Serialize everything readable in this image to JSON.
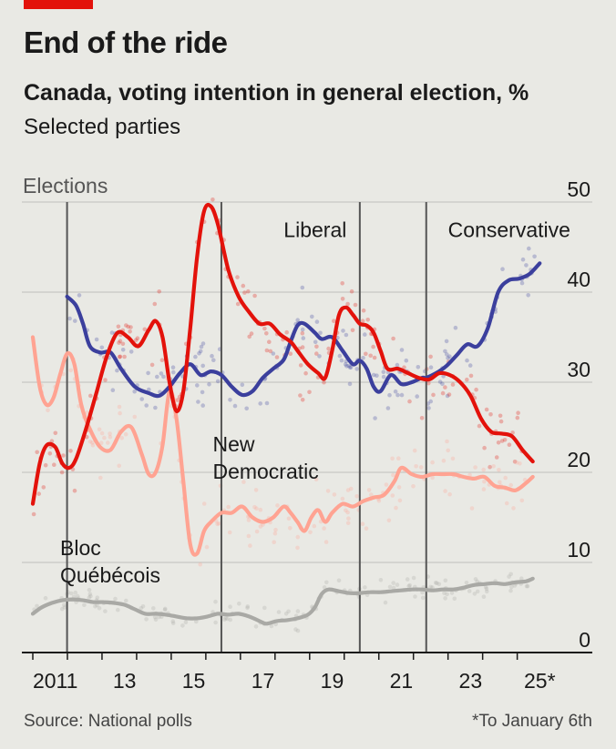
{
  "header": {
    "title": "End of the ride",
    "subtitle": "Canada, voting intention in general election, %",
    "note": "Selected parties"
  },
  "footer": {
    "source": "Source: National polls",
    "footnote": "*To January 6th"
  },
  "chart_data": {
    "type": "line",
    "title": "End of the ride",
    "ylim": [
      0,
      50
    ],
    "y_ticks": [
      "0",
      "10",
      "20",
      "30",
      "40",
      "50"
    ],
    "x_ticks": [
      {
        "x": 2011.0,
        "label": "2011"
      },
      {
        "x": 2013.0,
        "label": "13"
      },
      {
        "x": 2015.0,
        "label": "15"
      },
      {
        "x": 2017.0,
        "label": "17"
      },
      {
        "x": 2019.0,
        "label": "19"
      },
      {
        "x": 2021.0,
        "label": "21"
      },
      {
        "x": 2023.0,
        "label": "23"
      },
      {
        "x": 2025.0,
        "label": "25*"
      }
    ],
    "x_minor_ticks": [
      2010.35,
      2011.35,
      2012.35,
      2013.35,
      2014.35,
      2015.35,
      2016.35,
      2017.35,
      2018.35,
      2019.35,
      2020.35,
      2021.35,
      2022.35,
      2023.35,
      2024.35
    ],
    "xlim": [
      2010.35,
      2025.15
    ],
    "elections_label": "Elections",
    "elections": [
      2011.34,
      2015.8,
      2019.8,
      2021.72
    ],
    "grid": true,
    "series": [
      {
        "name": "Conservative",
        "color": "#3b3f9d",
        "label_at": [
          2022.35,
          46.1
        ],
        "points": [
          [
            2011.34,
            39.5
          ],
          [
            2011.6,
            38.5
          ],
          [
            2011.8,
            36.5
          ],
          [
            2012.0,
            34.0
          ],
          [
            2012.3,
            33.3
          ],
          [
            2012.6,
            33.3
          ],
          [
            2012.9,
            31.5
          ],
          [
            2013.3,
            29.5
          ],
          [
            2013.7,
            28.8
          ],
          [
            2014.0,
            28.5
          ],
          [
            2014.3,
            29.5
          ],
          [
            2014.6,
            31.0
          ],
          [
            2014.9,
            32.0
          ],
          [
            2015.2,
            30.8
          ],
          [
            2015.5,
            31.2
          ],
          [
            2015.8,
            30.8
          ],
          [
            2016.1,
            29.5
          ],
          [
            2016.4,
            28.6
          ],
          [
            2016.7,
            29.0
          ],
          [
            2017.0,
            30.5
          ],
          [
            2017.3,
            31.5
          ],
          [
            2017.6,
            32.5
          ],
          [
            2017.8,
            34.5
          ],
          [
            2018.0,
            36.3
          ],
          [
            2018.2,
            36.5
          ],
          [
            2018.5,
            35.5
          ],
          [
            2018.7,
            34.8
          ],
          [
            2019.0,
            35.0
          ],
          [
            2019.3,
            33.5
          ],
          [
            2019.6,
            32.0
          ],
          [
            2019.8,
            32.4
          ],
          [
            2020.0,
            31.5
          ],
          [
            2020.2,
            29.5
          ],
          [
            2020.4,
            29.0
          ],
          [
            2020.7,
            30.8
          ],
          [
            2021.0,
            29.8
          ],
          [
            2021.3,
            30.0
          ],
          [
            2021.6,
            30.5
          ],
          [
            2021.72,
            30.5
          ],
          [
            2022.0,
            31.0
          ],
          [
            2022.3,
            31.8
          ],
          [
            2022.6,
            33.0
          ],
          [
            2022.9,
            34.2
          ],
          [
            2023.2,
            34.0
          ],
          [
            2023.5,
            36.0
          ],
          [
            2023.8,
            40.0
          ],
          [
            2024.1,
            41.3
          ],
          [
            2024.4,
            41.5
          ],
          [
            2024.7,
            42.0
          ],
          [
            2025.0,
            43.2
          ]
        ]
      },
      {
        "name": "Liberal",
        "color": "#e3120b",
        "label_at": [
          2017.6,
          46.1
        ],
        "points": [
          [
            2010.35,
            16.5
          ],
          [
            2010.55,
            21.0
          ],
          [
            2010.75,
            23.0
          ],
          [
            2011.0,
            22.8
          ],
          [
            2011.2,
            21.0
          ],
          [
            2011.4,
            20.5
          ],
          [
            2011.6,
            21.5
          ],
          [
            2011.9,
            25.0
          ],
          [
            2012.2,
            29.0
          ],
          [
            2012.5,
            33.0
          ],
          [
            2012.8,
            35.5
          ],
          [
            2013.1,
            35.0
          ],
          [
            2013.4,
            34.0
          ],
          [
            2013.7,
            35.8
          ],
          [
            2013.9,
            36.8
          ],
          [
            2014.1,
            35.0
          ],
          [
            2014.3,
            30.0
          ],
          [
            2014.5,
            26.8
          ],
          [
            2014.7,
            29.0
          ],
          [
            2014.9,
            36.0
          ],
          [
            2015.1,
            44.0
          ],
          [
            2015.3,
            49.0
          ],
          [
            2015.5,
            49.5
          ],
          [
            2015.7,
            47.5
          ],
          [
            2016.0,
            42.5
          ],
          [
            2016.3,
            39.5
          ],
          [
            2016.6,
            37.8
          ],
          [
            2016.9,
            36.5
          ],
          [
            2017.2,
            36.5
          ],
          [
            2017.5,
            35.3
          ],
          [
            2017.8,
            34.5
          ],
          [
            2018.0,
            33.5
          ],
          [
            2018.3,
            32.0
          ],
          [
            2018.6,
            31.0
          ],
          [
            2018.8,
            30.5
          ],
          [
            2019.0,
            33.5
          ],
          [
            2019.2,
            37.5
          ],
          [
            2019.4,
            38.3
          ],
          [
            2019.6,
            37.5
          ],
          [
            2019.8,
            36.5
          ],
          [
            2020.0,
            36.3
          ],
          [
            2020.2,
            35.5
          ],
          [
            2020.4,
            33.5
          ],
          [
            2020.6,
            31.5
          ],
          [
            2020.9,
            31.5
          ],
          [
            2021.2,
            31.0
          ],
          [
            2021.5,
            30.5
          ],
          [
            2021.8,
            30.3
          ],
          [
            2022.1,
            31.0
          ],
          [
            2022.4,
            30.8
          ],
          [
            2022.7,
            30.0
          ],
          [
            2023.0,
            28.5
          ],
          [
            2023.3,
            26.0
          ],
          [
            2023.6,
            24.5
          ],
          [
            2023.9,
            24.3
          ],
          [
            2024.2,
            24.0
          ],
          [
            2024.5,
            22.5
          ],
          [
            2024.8,
            21.2
          ]
        ]
      },
      {
        "name": "New Democratic",
        "color": "#ffa392",
        "label_at": [
          2015.55,
          22.3
        ],
        "points": [
          [
            2010.35,
            35.0
          ],
          [
            2010.55,
            29.5
          ],
          [
            2010.75,
            27.5
          ],
          [
            2010.95,
            28.3
          ],
          [
            2011.15,
            31.0
          ],
          [
            2011.35,
            33.2
          ],
          [
            2011.55,
            32.0
          ],
          [
            2011.75,
            27.5
          ],
          [
            2012.0,
            24.8
          ],
          [
            2012.3,
            22.8
          ],
          [
            2012.6,
            22.5
          ],
          [
            2012.9,
            24.5
          ],
          [
            2013.2,
            25.0
          ],
          [
            2013.5,
            22.0
          ],
          [
            2013.7,
            19.8
          ],
          [
            2013.9,
            20.0
          ],
          [
            2014.1,
            23.0
          ],
          [
            2014.3,
            29.0
          ],
          [
            2014.5,
            26.0
          ],
          [
            2014.7,
            19.0
          ],
          [
            2014.9,
            12.0
          ],
          [
            2015.1,
            11.0
          ],
          [
            2015.3,
            13.5
          ],
          [
            2015.5,
            14.5
          ],
          [
            2015.8,
            15.5
          ],
          [
            2016.1,
            15.5
          ],
          [
            2016.4,
            16.2
          ],
          [
            2016.7,
            15.0
          ],
          [
            2017.0,
            14.5
          ],
          [
            2017.3,
            15.0
          ],
          [
            2017.6,
            16.2
          ],
          [
            2017.8,
            15.5
          ],
          [
            2018.0,
            14.5
          ],
          [
            2018.2,
            13.5
          ],
          [
            2018.4,
            15.0
          ],
          [
            2018.6,
            15.8
          ],
          [
            2018.8,
            14.5
          ],
          [
            2019.0,
            15.5
          ],
          [
            2019.3,
            16.5
          ],
          [
            2019.6,
            16.2
          ],
          [
            2019.9,
            16.8
          ],
          [
            2020.2,
            17.2
          ],
          [
            2020.5,
            17.5
          ],
          [
            2020.8,
            19.0
          ],
          [
            2021.0,
            20.5
          ],
          [
            2021.3,
            19.8
          ],
          [
            2021.6,
            19.5
          ],
          [
            2021.9,
            19.8
          ],
          [
            2022.2,
            19.8
          ],
          [
            2022.5,
            19.8
          ],
          [
            2022.8,
            19.5
          ],
          [
            2023.1,
            19.3
          ],
          [
            2023.4,
            19.5
          ],
          [
            2023.7,
            18.5
          ],
          [
            2024.0,
            18.3
          ],
          [
            2024.3,
            18.0
          ],
          [
            2024.6,
            18.8
          ],
          [
            2024.8,
            19.5
          ]
        ]
      },
      {
        "name": "Bloc Québécois",
        "color": "#a9a9a5",
        "label_at": [
          2010.35,
          10.8
        ],
        "label_line2_at": [
          2010.35,
          7.8
        ],
        "points": [
          [
            2010.35,
            4.3
          ],
          [
            2010.6,
            5.0
          ],
          [
            2010.9,
            5.5
          ],
          [
            2011.2,
            5.8
          ],
          [
            2011.5,
            5.9
          ],
          [
            2011.8,
            5.8
          ],
          [
            2012.1,
            5.6
          ],
          [
            2012.4,
            5.6
          ],
          [
            2012.7,
            5.5
          ],
          [
            2013.0,
            5.3
          ],
          [
            2013.3,
            4.8
          ],
          [
            2013.6,
            4.3
          ],
          [
            2013.9,
            4.3
          ],
          [
            2014.2,
            4.2
          ],
          [
            2014.5,
            4.0
          ],
          [
            2014.8,
            3.8
          ],
          [
            2015.1,
            3.8
          ],
          [
            2015.4,
            4.0
          ],
          [
            2015.7,
            4.3
          ],
          [
            2016.0,
            4.2
          ],
          [
            2016.3,
            4.3
          ],
          [
            2016.6,
            4.0
          ],
          [
            2016.9,
            3.5
          ],
          [
            2017.1,
            3.2
          ],
          [
            2017.4,
            3.5
          ],
          [
            2017.7,
            3.6
          ],
          [
            2018.0,
            3.8
          ],
          [
            2018.3,
            4.2
          ],
          [
            2018.5,
            5.0
          ],
          [
            2018.7,
            6.5
          ],
          [
            2018.9,
            7.0
          ],
          [
            2019.2,
            6.8
          ],
          [
            2019.5,
            6.6
          ],
          [
            2019.8,
            6.6
          ],
          [
            2020.1,
            6.7
          ],
          [
            2020.4,
            6.7
          ],
          [
            2020.7,
            6.8
          ],
          [
            2021.0,
            6.9
          ],
          [
            2021.3,
            7.0
          ],
          [
            2021.6,
            7.0
          ],
          [
            2021.9,
            6.9
          ],
          [
            2022.2,
            7.0
          ],
          [
            2022.5,
            7.0
          ],
          [
            2022.8,
            7.2
          ],
          [
            2023.1,
            7.5
          ],
          [
            2023.4,
            7.6
          ],
          [
            2023.7,
            7.7
          ],
          [
            2024.0,
            7.6
          ],
          [
            2024.3,
            7.8
          ],
          [
            2024.6,
            7.9
          ],
          [
            2024.8,
            8.2
          ]
        ]
      }
    ]
  }
}
